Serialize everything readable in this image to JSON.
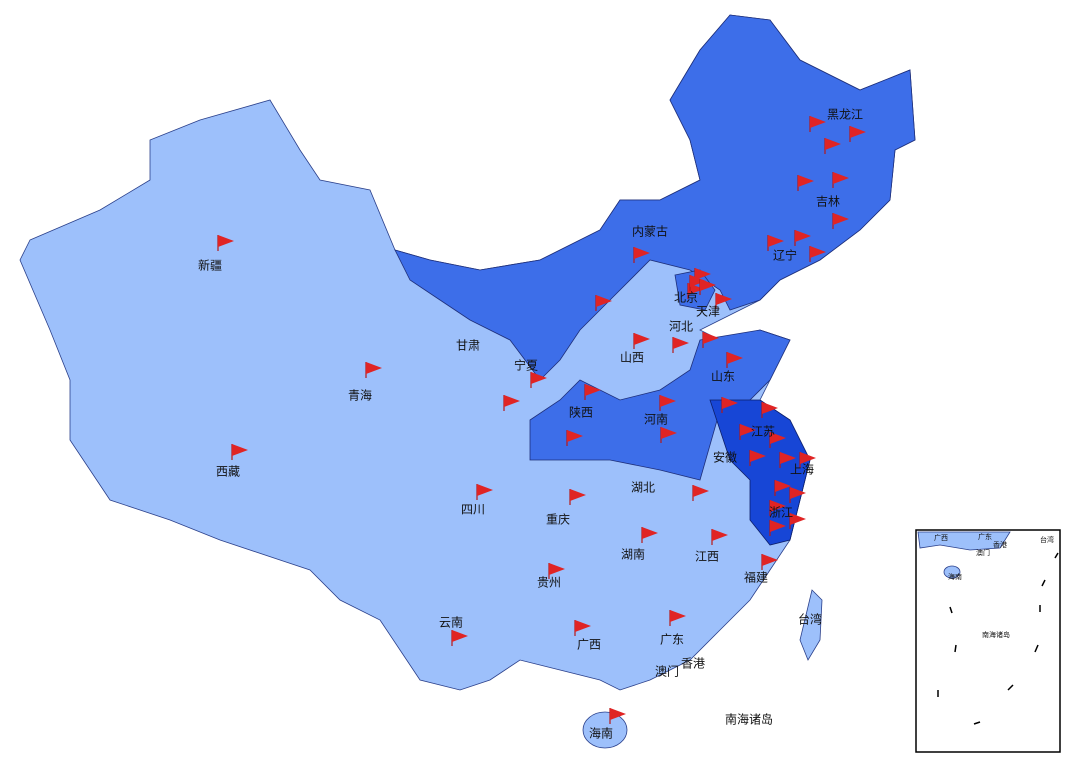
{
  "map": {
    "labels": [
      "黑龙江",
      "吉林",
      "辽宁",
      "内蒙古",
      "北京",
      "天津",
      "河北",
      "山西",
      "山东",
      "宁夏",
      "甘肃",
      "青海",
      "新疆",
      "西藏",
      "陕西",
      "河南",
      "江苏",
      "安徽",
      "上海",
      "浙江",
      "湖北",
      "四川",
      "重庆",
      "湖南",
      "江西",
      "福建",
      "贵州",
      "云南",
      "广西",
      "广东",
      "香港",
      "澳门",
      "台湾",
      "海南",
      "南海诸岛"
    ],
    "inset_labels": [
      "广西",
      "广东",
      "香港",
      "澳门",
      "台湾",
      "海南",
      "南海诸岛"
    ]
  }
}
